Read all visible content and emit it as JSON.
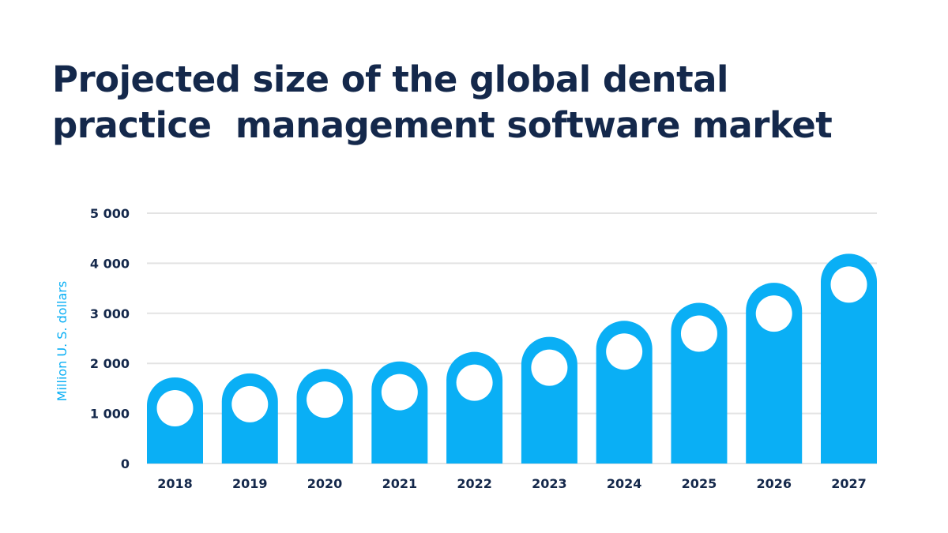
{
  "chart_data": {
    "type": "bar",
    "title_lines": [
      "Projected size of the global dental",
      "practice  management software market"
    ],
    "xlabel": "",
    "ylabel": "Million U. S. dollars",
    "categories": [
      "2018",
      "2019",
      "2020",
      "2021",
      "2022",
      "2023",
      "2024",
      "2025",
      "2026",
      "2027"
    ],
    "values": [
      1720,
      1800,
      1890,
      2040,
      2230,
      2530,
      2850,
      3210,
      3610,
      4190
    ],
    "ylim": [
      0,
      5000
    ],
    "yticks": [
      0,
      1000,
      2000,
      3000,
      4000,
      5000
    ],
    "ytick_labels": [
      "0",
      "1 000",
      "2 000",
      "3 000",
      "4 000",
      "5 000"
    ],
    "grid": true,
    "bar_color": "#0aaff5",
    "grid_color": "#e3e3e3",
    "title_color": "#14284b"
  }
}
